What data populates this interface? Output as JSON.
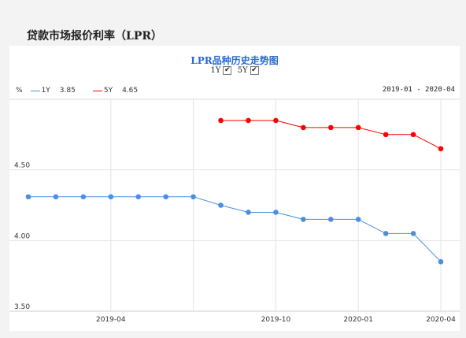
{
  "panel_title": "贷款市场报价利率（LPR）",
  "chart_data": {
    "type": "line",
    "title": "LPR品种历史走势图",
    "toggles": [
      {
        "label": "1Y",
        "checked": true
      },
      {
        "label": "5Y",
        "checked": true
      }
    ],
    "unit": "%",
    "date_range": "2019-01 - 2020-04",
    "categories": [
      "2019-01",
      "2019-02",
      "2019-03",
      "2019-04",
      "2019-05",
      "2019-06",
      "2019-07",
      "2019-08",
      "2019-09",
      "2019-10",
      "2019-11",
      "2019-12",
      "2020-01",
      "2020-02",
      "2020-03",
      "2020-04"
    ],
    "x_tick_labels": [
      {
        "index": 3,
        "label": "2019-04"
      },
      {
        "index": 9,
        "label": "2019-10"
      },
      {
        "index": 12,
        "label": "2020-01"
      },
      {
        "index": 15,
        "label": "2020-04"
      }
    ],
    "vertical_grid_indices": [
      3,
      6,
      9,
      12,
      15
    ],
    "y_ticks": [
      3.5,
      4.0,
      4.5
    ],
    "y_tick_labels": [
      "3.50",
      "4.00",
      "4.50"
    ],
    "ylim": [
      3.5,
      5.0
    ],
    "grid": true,
    "legend_position": "top-left",
    "series": [
      {
        "name": "1Y",
        "latest": "3.85",
        "color": "#4a90e2",
        "values": [
          4.31,
          4.31,
          4.31,
          4.31,
          4.31,
          4.31,
          4.31,
          4.25,
          4.2,
          4.2,
          4.15,
          4.15,
          4.15,
          4.05,
          4.05,
          3.85
        ]
      },
      {
        "name": "5Y",
        "latest": "4.65",
        "color": "#ff0000",
        "values": [
          null,
          null,
          null,
          null,
          null,
          null,
          null,
          4.85,
          4.85,
          4.85,
          4.8,
          4.8,
          4.8,
          4.75,
          4.75,
          4.65
        ]
      }
    ]
  }
}
